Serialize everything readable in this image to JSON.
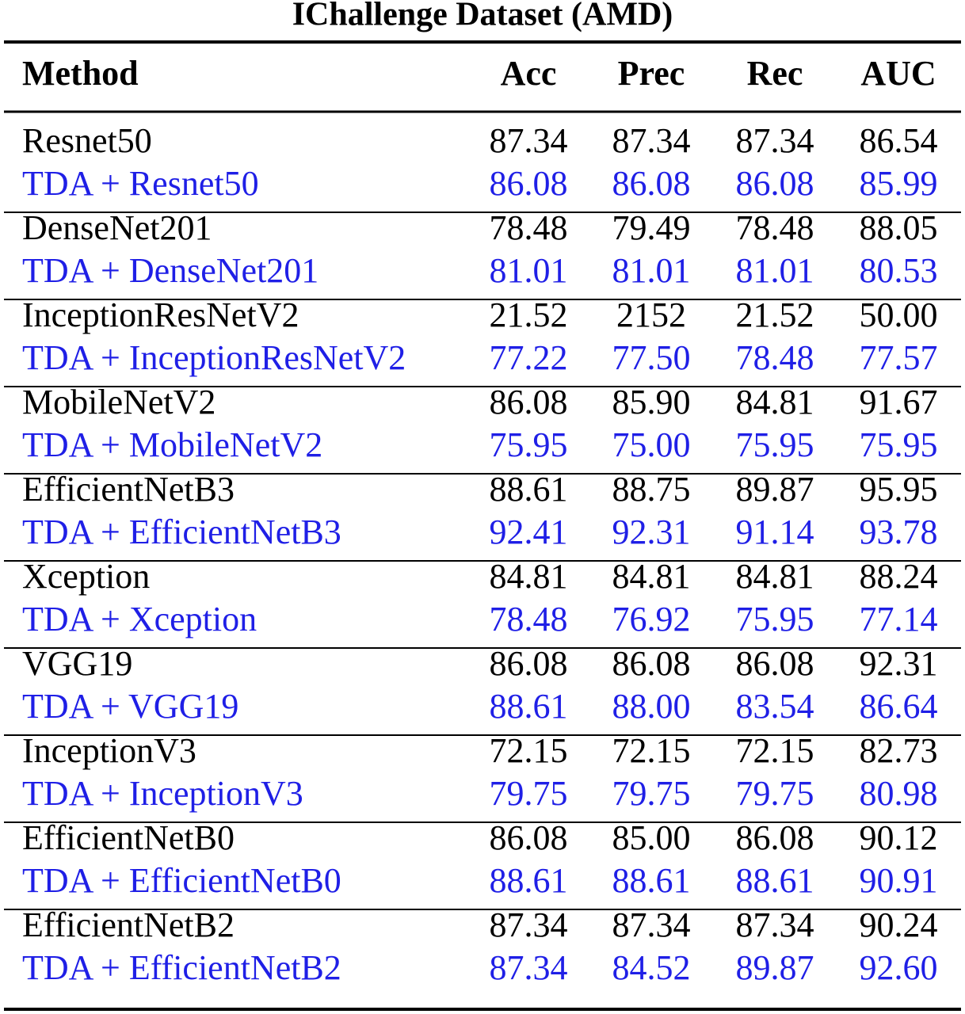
{
  "title": "IChallenge Dataset (AMD)",
  "table": {
    "header": [
      "Method",
      "Acc",
      "Prec",
      "Rec",
      "AUC"
    ],
    "rows": [
      [
        "Resnet50",
        "87.34",
        "87.34",
        "87.34",
        "86.54"
      ],
      [
        "TDA + Resnet50",
        "86.08",
        "86.08",
        "86.08",
        "85.99"
      ],
      [
        "DenseNet201",
        "78.48",
        "79.49",
        "78.48",
        "88.05"
      ],
      [
        "TDA + DenseNet201",
        "81.01",
        "81.01",
        "81.01",
        "80.53"
      ],
      [
        "InceptionResNetV2",
        "21.52",
        "2152",
        "21.52",
        "50.00"
      ],
      [
        "TDA + InceptionResNetV2",
        "77.22",
        "77.50",
        "78.48",
        "77.57"
      ],
      [
        "MobileNetV2",
        "86.08",
        "85.90",
        "84.81",
        "91.67"
      ],
      [
        "TDA + MobileNetV2",
        "75.95",
        "75.00",
        "75.95",
        "75.95"
      ],
      [
        "EfficientNetB3",
        "88.61",
        "88.75",
        "89.87",
        "95.95"
      ],
      [
        "TDA + EfficientNetB3",
        "92.41",
        "92.31",
        "91.14",
        "93.78"
      ],
      [
        "Xception",
        "84.81",
        "84.81",
        "84.81",
        "88.24"
      ],
      [
        "TDA + Xception",
        "78.48",
        "76.92",
        "75.95",
        "77.14"
      ],
      [
        "VGG19",
        "86.08",
        "86.08",
        "86.08",
        "92.31"
      ],
      [
        "TDA + VGG19",
        "88.61",
        "88.00",
        "83.54",
        "86.64"
      ],
      [
        "InceptionV3",
        "72.15",
        "72.15",
        "72.15",
        "82.73"
      ],
      [
        "TDA + InceptionV3",
        "79.75",
        "79.75",
        "79.75",
        "80.98"
      ],
      [
        "EfficientNetB0",
        "86.08",
        "85.00",
        "86.08",
        "90.12"
      ],
      [
        "TDA + EfficientNetB0",
        "88.61",
        "88.61",
        "88.61",
        "90.91"
      ],
      [
        "EfficientNetB2",
        "87.34",
        "87.34",
        "87.34",
        "90.24"
      ],
      [
        "TDA + EfficientNetB2",
        "87.34",
        "84.52",
        "89.87",
        "92.60"
      ]
    ]
  }
}
